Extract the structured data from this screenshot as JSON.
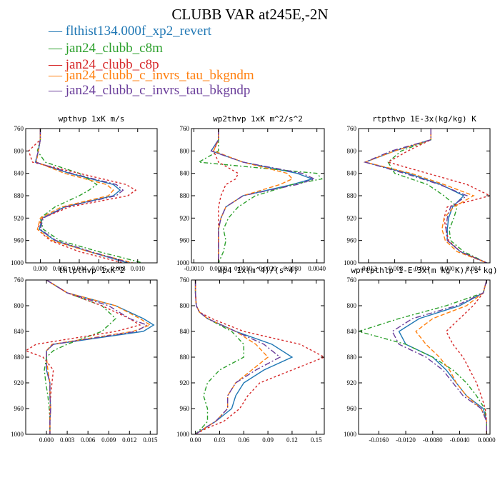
{
  "title": "CLUBB VAR at245E,-2N",
  "legend": [
    {
      "label": "— flthist134.000f_xp2_revert",
      "color": "#1f77b4"
    },
    {
      "label": "— jan24_clubb_c8m",
      "color": "#2ca02c"
    },
    {
      "label": "— jan24_clubb_c8p",
      "color": "#d62728"
    },
    {
      "label": "— jan24_clubb_c_invrs_tau_bkgndm",
      "color": "#ff7f0e"
    },
    {
      "label": "— jan24_clubb_c_invrs_tau_bkgndp",
      "color": "#6a3d9a"
    }
  ],
  "chart_data": [
    {
      "type": "line",
      "title": "wpthvp  1xK m/s",
      "xlim": [
        -0.0015,
        0.012
      ],
      "ylim": [
        760,
        1000
      ],
      "y_inverted": true,
      "xticks": [
        "0.000",
        "0.002",
        "0.004",
        "0.006",
        "0.008",
        "0.010"
      ],
      "yticks": [
        "760",
        "800",
        "840",
        "880",
        "920",
        "960",
        "1000"
      ],
      "y": [
        760,
        780,
        800,
        820,
        840,
        860,
        870,
        880,
        900,
        920,
        940,
        960,
        980,
        1000
      ],
      "series": [
        {
          "name": "flthist134.000f_xp2_revert",
          "color": "#1f77b4",
          "dash": "solid",
          "x": [
            0.0,
            0.0,
            -0.0002,
            -0.0005,
            0.003,
            0.0075,
            0.0082,
            0.0075,
            0.0025,
            0.0002,
            -0.0001,
            0.0015,
            0.005,
            0.009
          ]
        },
        {
          "name": "jan24_clubb_c8m",
          "color": "#2ca02c",
          "dash": "6,3,2,3",
          "x": [
            0.0,
            0.0,
            -0.0003,
            0.0005,
            0.004,
            0.0058,
            0.005,
            0.004,
            0.0015,
            0.0,
            0.0003,
            0.002,
            0.006,
            0.0105
          ]
        },
        {
          "name": "jan24_clubb_c8p",
          "color": "#d62728",
          "dash": "3,3",
          "x": [
            0.0,
            0.0,
            -0.0012,
            -0.0008,
            0.004,
            0.0088,
            0.0098,
            0.009,
            0.003,
            0.0002,
            -0.0003,
            0.001,
            0.004,
            0.0085
          ]
        },
        {
          "name": "jan24_clubb_c_invrs_tau_bkgndm",
          "color": "#ff7f0e",
          "dash": "6,3",
          "x": [
            0.0,
            0.0,
            -0.0002,
            -0.0004,
            0.0025,
            0.0068,
            0.0075,
            0.007,
            0.0022,
            0.0,
            -0.0003,
            0.0012,
            0.005,
            0.0095
          ]
        },
        {
          "name": "jan24_clubb_c_invrs_tau_bkgndp",
          "color": "#6a3d9a",
          "dash": "8,3,2,3",
          "x": [
            0.0,
            0.0,
            -0.0002,
            -0.0005,
            0.0032,
            0.0078,
            0.0085,
            0.0078,
            0.0026,
            0.0003,
            0.0,
            0.0016,
            0.0052,
            0.0092
          ]
        }
      ]
    },
    {
      "type": "line",
      "title": "wp2thvp  1xK m^2/s^2",
      "xlim": [
        -0.0011,
        0.0043
      ],
      "ylim": [
        760,
        1000
      ],
      "y_inverted": true,
      "xticks": [
        "-0.0010",
        "0.0000",
        "0.0010",
        "0.0020",
        "0.0030",
        "0.0040"
      ],
      "yticks": [
        "760",
        "800",
        "840",
        "880",
        "920",
        "960",
        "1000"
      ],
      "y": [
        760,
        780,
        800,
        820,
        840,
        850,
        860,
        880,
        900,
        920,
        940,
        960,
        980,
        1000
      ],
      "series": [
        {
          "name": "flthist134.000f_xp2_revert",
          "color": "#1f77b4",
          "dash": "solid",
          "x": [
            0.0,
            0.0,
            -0.0003,
            0.001,
            0.0032,
            0.0038,
            0.003,
            0.001,
            0.0003,
            0.0001,
            0.0,
            0.0,
            0.0,
            0.0
          ]
        },
        {
          "name": "jan24_clubb_c8m",
          "color": "#2ca02c",
          "dash": "6,3,2,3",
          "x": [
            0.0,
            0.0,
            0.0,
            -0.0008,
            0.004,
            0.0042,
            0.003,
            0.0015,
            0.0008,
            0.0004,
            0.0002,
            0.0003,
            0.0002,
            0.0
          ]
        },
        {
          "name": "jan24_clubb_c8p",
          "color": "#d62728",
          "dash": "3,3",
          "x": [
            0.0,
            0.0,
            -0.0002,
            0.0,
            0.0008,
            0.0007,
            0.0003,
            0.0001,
            0.0,
            0.0,
            0.0,
            0.0,
            0.0,
            0.0
          ]
        },
        {
          "name": "jan24_clubb_c_invrs_tau_bkgndm",
          "color": "#ff7f0e",
          "dash": "6,3",
          "x": [
            0.0,
            0.0,
            -0.0002,
            0.001,
            0.0028,
            0.003,
            0.0025,
            0.001,
            0.0003,
            0.0001,
            0.0,
            0.0,
            0.0,
            0.0
          ]
        },
        {
          "name": "jan24_clubb_c_invrs_tau_bkgndp",
          "color": "#6a3d9a",
          "dash": "8,3,2,3",
          "x": [
            0.0,
            0.0,
            -0.0003,
            0.001,
            0.0034,
            0.0039,
            0.0032,
            0.001,
            0.0003,
            0.0001,
            0.0,
            0.0,
            0.0,
            0.0
          ]
        }
      ]
    },
    {
      "type": "line",
      "title": "rtpthvp  1E-3x(kg/kg) K",
      "xlim": [
        -0.0135,
        0.0065
      ],
      "ylim": [
        760,
        1000
      ],
      "y_inverted": true,
      "xticks": [
        "-0.012",
        "-0.008",
        "-0.004",
        "0.000",
        "0.004"
      ],
      "yticks": [
        "760",
        "800",
        "840",
        "880",
        "920",
        "960",
        "1000"
      ],
      "y": [
        760,
        780,
        800,
        820,
        840,
        860,
        880,
        900,
        920,
        940,
        960,
        980,
        1000
      ],
      "series": [
        {
          "name": "flthist134.000f_xp2_revert",
          "color": "#1f77b4",
          "dash": "solid",
          "x": [
            -0.0025,
            -0.0025,
            -0.008,
            -0.0125,
            -0.006,
            -0.001,
            0.0025,
            0.0008,
            0.0002,
            0.0,
            0.0,
            0.002,
            0.006
          ]
        },
        {
          "name": "jan24_clubb_c8m",
          "color": "#2ca02c",
          "dash": "6,3,2,3",
          "x": [
            -0.0025,
            -0.0025,
            -0.007,
            -0.009,
            -0.008,
            -0.003,
            -0.0005,
            0.0015,
            0.001,
            0.0003,
            0.0005,
            0.0025,
            0.006
          ]
        },
        {
          "name": "jan24_clubb_c8p",
          "color": "#d62728",
          "dash": "3,3",
          "x": [
            -0.0025,
            -0.0025,
            -0.006,
            -0.009,
            -0.003,
            0.003,
            0.0065,
            0.0,
            -0.0005,
            -0.0002,
            0.0002,
            0.002,
            0.006
          ]
        },
        {
          "name": "jan24_clubb_c_invrs_tau_bkgndm",
          "color": "#ff7f0e",
          "dash": "6,3",
          "x": [
            -0.0025,
            -0.0025,
            -0.008,
            -0.0125,
            -0.0055,
            -0.0005,
            0.004,
            0.001,
            -0.0005,
            -0.0008,
            -0.0003,
            0.0015,
            0.006
          ]
        },
        {
          "name": "jan24_clubb_c_invrs_tau_bkgndp",
          "color": "#6a3d9a",
          "dash": "8,3,2,3",
          "x": [
            -0.0025,
            -0.0025,
            -0.0085,
            -0.0125,
            -0.0065,
            -0.0012,
            0.003,
            0.0005,
            0.0,
            -0.0002,
            0.0,
            0.002,
            0.006
          ]
        }
      ]
    },
    {
      "type": "line",
      "title": "thlpthvp  1xK^2",
      "xlim": [
        -0.003,
        0.016
      ],
      "ylim": [
        760,
        1000
      ],
      "y_inverted": true,
      "xticks": [
        "0.000",
        "0.003",
        "0.006",
        "0.009",
        "0.012",
        "0.015"
      ],
      "yticks": [
        "760",
        "800",
        "840",
        "880",
        "920",
        "960",
        "1000"
      ],
      "y": [
        760,
        780,
        800,
        820,
        830,
        840,
        860,
        870,
        880,
        900,
        920,
        940,
        960,
        980,
        1000
      ],
      "series": [
        {
          "name": "flthist134.000f_xp2_revert",
          "color": "#1f77b4",
          "dash": "solid",
          "x": [
            0.0,
            0.003,
            0.01,
            0.014,
            0.0155,
            0.014,
            0.001,
            0.0,
            0.0,
            0.0,
            0.0005,
            0.0005,
            0.0006,
            0.0005,
            0.0005
          ]
        },
        {
          "name": "jan24_clubb_c8m",
          "color": "#2ca02c",
          "dash": "6,3,2,3",
          "x": [
            0.0,
            0.003,
            0.008,
            0.01,
            0.009,
            0.008,
            0.003,
            0.001,
            0.0,
            -0.0003,
            -0.0001,
            0.0002,
            0.0004,
            0.0005,
            0.0005
          ]
        },
        {
          "name": "jan24_clubb_c8p",
          "color": "#d62728",
          "dash": "3,3",
          "x": [
            0.0,
            0.003,
            0.008,
            0.012,
            0.0135,
            0.01,
            -0.0015,
            -0.003,
            -0.0005,
            0.001,
            0.0008,
            0.0006,
            0.0005,
            0.0005,
            0.0005
          ]
        },
        {
          "name": "jan24_clubb_c_invrs_tau_bkgndm",
          "color": "#ff7f0e",
          "dash": "6,3",
          "x": [
            0.0,
            0.003,
            0.01,
            0.0135,
            0.015,
            0.0125,
            0.0008,
            0.0,
            0.0,
            0.0002,
            0.0005,
            0.0005,
            0.0006,
            0.0005,
            0.0005
          ]
        },
        {
          "name": "jan24_clubb_c_invrs_tau_bkgndp",
          "color": "#6a3d9a",
          "dash": "8,3,2,3",
          "x": [
            0.0,
            0.003,
            0.009,
            0.012,
            0.0145,
            0.013,
            0.001,
            0.0,
            0.0,
            0.0,
            0.0005,
            0.0005,
            0.0006,
            0.0005,
            0.0005
          ]
        }
      ]
    },
    {
      "type": "line",
      "title": "wp4  1x(m^4)/(s^4)",
      "xlim": [
        -0.005,
        0.16
      ],
      "ylim": [
        760,
        1000
      ],
      "y_inverted": true,
      "xticks": [
        "0.00",
        "0.03",
        "0.06",
        "0.09",
        "0.12",
        "0.15"
      ],
      "yticks": [
        "760",
        "800",
        "840",
        "880",
        "920",
        "960",
        "1000"
      ],
      "y": [
        760,
        780,
        800,
        810,
        820,
        840,
        860,
        880,
        900,
        920,
        940,
        960,
        980,
        990,
        1000
      ],
      "series": [
        {
          "name": "flthist134.000f_xp2_revert",
          "color": "#1f77b4",
          "dash": "solid",
          "x": [
            0.0,
            0.0,
            0.001,
            0.005,
            0.015,
            0.05,
            0.095,
            0.12,
            0.085,
            0.06,
            0.05,
            0.045,
            0.025,
            0.012,
            0.0
          ]
        },
        {
          "name": "jan24_clubb_c8m",
          "color": "#2ca02c",
          "dash": "6,3,2,3",
          "x": [
            0.0,
            0.0,
            0.001,
            0.005,
            0.015,
            0.045,
            0.06,
            0.06,
            0.03,
            0.015,
            0.01,
            0.015,
            0.015,
            0.008,
            0.0
          ]
        },
        {
          "name": "jan24_clubb_c8p",
          "color": "#d62728",
          "dash": "3,3",
          "x": [
            0.0,
            0.0,
            0.001,
            0.005,
            0.02,
            0.06,
            0.13,
            0.16,
            0.12,
            0.08,
            0.065,
            0.055,
            0.035,
            0.015,
            0.0
          ]
        },
        {
          "name": "jan24_clubb_c_invrs_tau_bkgndm",
          "color": "#ff7f0e",
          "dash": "6,3",
          "x": [
            0.0,
            0.0,
            0.001,
            0.005,
            0.015,
            0.05,
            0.075,
            0.09,
            0.07,
            0.05,
            0.04,
            0.04,
            0.025,
            0.012,
            0.0
          ]
        },
        {
          "name": "jan24_clubb_c_invrs_tau_bkgndp",
          "color": "#6a3d9a",
          "dash": "8,3,2,3",
          "x": [
            0.0,
            0.0,
            0.001,
            0.005,
            0.015,
            0.05,
            0.085,
            0.105,
            0.075,
            0.05,
            0.04,
            0.04,
            0.025,
            0.012,
            0.0
          ]
        }
      ]
    },
    {
      "type": "line",
      "title": "wprtpthlp  1-E-3x(m kg K)/(s kg)",
      "xlim": [
        -0.019,
        0.0005
      ],
      "ylim": [
        760,
        1000
      ],
      "y_inverted": true,
      "xticks": [
        "-0.0160",
        "-0.0120",
        "-0.0080",
        "-0.0040",
        "0.0000"
      ],
      "yticks": [
        "760",
        "800",
        "840",
        "880",
        "920",
        "960",
        "1000"
      ],
      "y": [
        760,
        780,
        800,
        820,
        840,
        860,
        880,
        900,
        920,
        940,
        960,
        980,
        1000
      ],
      "series": [
        {
          "name": "flthist134.000f_xp2_revert",
          "color": "#1f77b4",
          "dash": "solid",
          "x": [
            0.0,
            -0.0005,
            -0.004,
            -0.01,
            -0.013,
            -0.012,
            -0.008,
            -0.006,
            -0.0045,
            -0.003,
            -0.0005,
            0.0,
            0.0
          ]
        },
        {
          "name": "jan24_clubb_c8m",
          "color": "#2ca02c",
          "dash": "6,3,2,3",
          "x": [
            0.0,
            -0.0005,
            -0.006,
            -0.013,
            -0.019,
            -0.012,
            -0.008,
            -0.005,
            -0.003,
            -0.0015,
            -0.0003,
            0.0,
            0.0
          ]
        },
        {
          "name": "jan24_clubb_c8p",
          "color": "#d62728",
          "dash": "3,3",
          "x": [
            0.0,
            -0.0005,
            -0.002,
            -0.004,
            -0.006,
            -0.005,
            -0.0035,
            -0.0025,
            -0.0015,
            -0.0008,
            -0.0002,
            0.0,
            0.0
          ]
        },
        {
          "name": "jan24_clubb_c_invrs_tau_bkgndm",
          "color": "#ff7f0e",
          "dash": "6,3",
          "x": [
            0.0,
            -0.0005,
            -0.003,
            -0.008,
            -0.0105,
            -0.009,
            -0.007,
            -0.0055,
            -0.0045,
            -0.003,
            -0.0008,
            0.0,
            0.0
          ]
        },
        {
          "name": "jan24_clubb_c_invrs_tau_bkgndp",
          "color": "#6a3d9a",
          "dash": "8,3,2,3",
          "x": [
            0.0,
            -0.0005,
            -0.0045,
            -0.011,
            -0.014,
            -0.013,
            -0.009,
            -0.0065,
            -0.005,
            -0.0035,
            -0.0008,
            0.0,
            0.0
          ]
        }
      ]
    }
  ]
}
